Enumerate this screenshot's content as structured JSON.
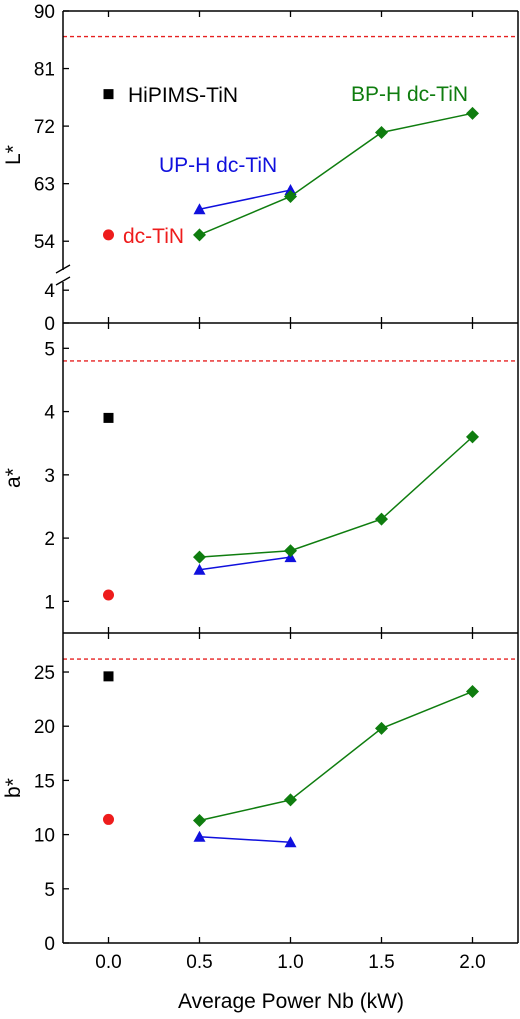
{
  "chart_data": {
    "type": "scatter",
    "shared_x": {
      "label": "Average Power Nb (kW)",
      "range": [
        -0.25,
        2.25
      ],
      "ticks": [
        "0.0",
        "0.5",
        "1.0",
        "1.5",
        "2.0"
      ]
    },
    "colors": {
      "hipims": "#000000",
      "dc": "#ee1c1c",
      "uph": "#1010dd",
      "bph": "#0f7d0f",
      "reference_line": "#e62020"
    },
    "legend_labels": {
      "hipims": "HiPIMS-TiN",
      "dc": "dc-TiN",
      "uph": "UP-H dc-TiN",
      "bph": "BP-H dc-TiN"
    },
    "panels": [
      {
        "id": "L",
        "ylabel": "L*",
        "axis_break": true,
        "lower_range": [
          0,
          5
        ],
        "upper_range": [
          49.5,
          90
        ],
        "lower_ticks": [
          0,
          4
        ],
        "upper_ticks": [
          54,
          63,
          72,
          81,
          90
        ],
        "reference_line": 86,
        "series": {
          "hipims": [
            [
              0,
              77
            ]
          ],
          "dc": [
            [
              0,
              55
            ]
          ],
          "uph": [
            [
              0.5,
              59
            ],
            [
              1.0,
              62
            ]
          ],
          "bph": [
            [
              0.5,
              55
            ],
            [
              1.0,
              61
            ],
            [
              1.5,
              71
            ],
            [
              2.0,
              74
            ]
          ]
        }
      },
      {
        "id": "a",
        "ylabel": "a*",
        "range": [
          0.5,
          5.4
        ],
        "ticks": [
          1,
          2,
          3,
          4,
          5
        ],
        "reference_line": 4.8,
        "series": {
          "hipims": [
            [
              0,
              3.9
            ]
          ],
          "dc": [
            [
              0,
              1.1
            ]
          ],
          "uph": [
            [
              0.5,
              1.5
            ],
            [
              1.0,
              1.7
            ]
          ],
          "bph": [
            [
              0.5,
              1.7
            ],
            [
              1.0,
              1.8
            ],
            [
              1.5,
              2.3
            ],
            [
              2.0,
              3.6
            ]
          ]
        }
      },
      {
        "id": "b",
        "ylabel": "b*",
        "range": [
          0,
          28.6
        ],
        "ticks": [
          0,
          5,
          10,
          15,
          20,
          25
        ],
        "reference_line": 26.2,
        "series": {
          "hipims": [
            [
              0,
              24.6
            ]
          ],
          "dc": [
            [
              0,
              11.4
            ]
          ],
          "uph": [
            [
              0.5,
              9.8
            ],
            [
              1.0,
              9.3
            ]
          ],
          "bph": [
            [
              0.5,
              11.3
            ],
            [
              1.0,
              13.2
            ],
            [
              1.5,
              19.8
            ],
            [
              2.0,
              23.2
            ]
          ]
        }
      }
    ]
  }
}
